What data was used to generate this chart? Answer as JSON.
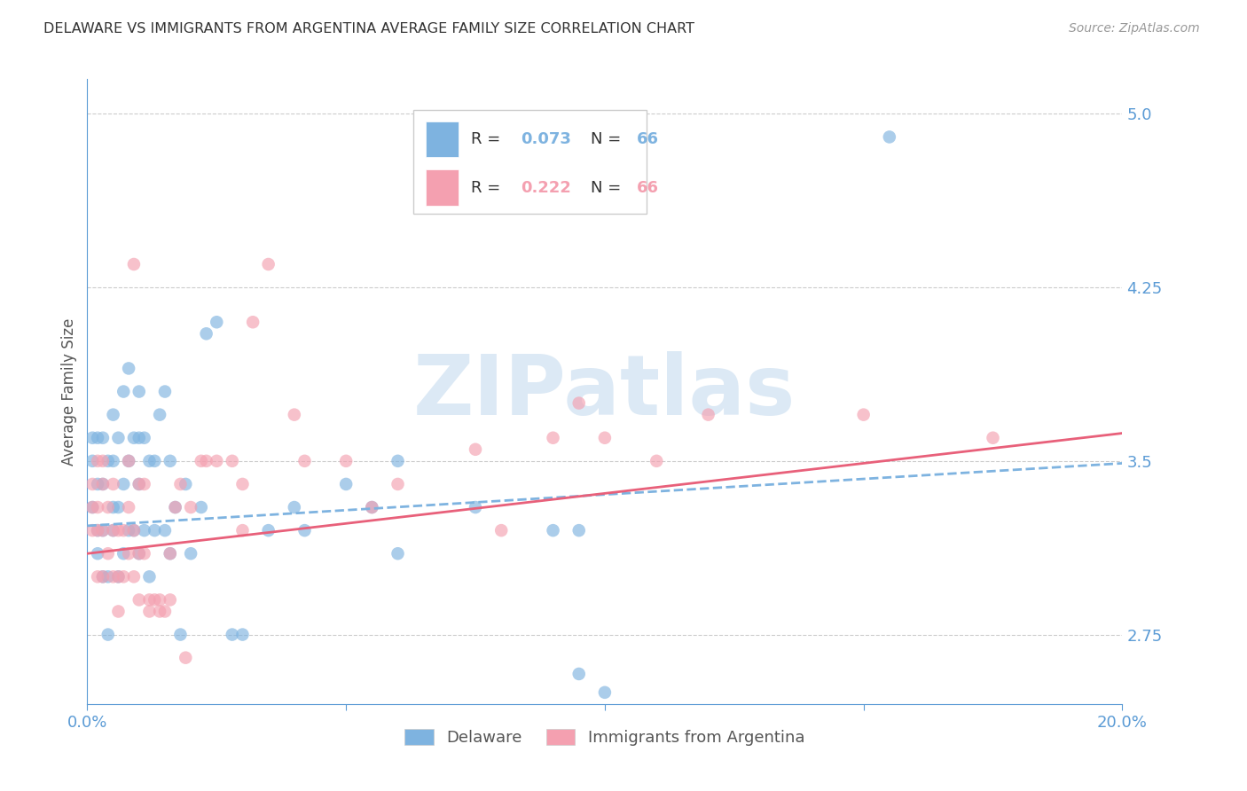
{
  "title": "DELAWARE VS IMMIGRANTS FROM ARGENTINA AVERAGE FAMILY SIZE CORRELATION CHART",
  "source": "Source: ZipAtlas.com",
  "ylabel": "Average Family Size",
  "xlim": [
    0.0,
    0.2
  ],
  "ylim": [
    2.45,
    5.15
  ],
  "yticks": [
    2.75,
    3.5,
    4.25,
    5.0
  ],
  "xtick_vals": [
    0.0,
    0.05,
    0.1,
    0.15,
    0.2
  ],
  "xtick_labels": [
    "0.0%",
    "",
    "",
    "",
    "20.0%"
  ],
  "background_color": "#ffffff",
  "grid_color": "#cccccc",
  "title_color": "#333333",
  "axis_color": "#5b9bd5",
  "watermark_text": "ZIPatlas",
  "watermark_color": "#dce9f5",
  "delaware_color": "#7eb3e0",
  "argentina_color": "#f4a0b0",
  "argentina_trend_color": "#e8607a",
  "delaware_scatter_x": [
    0.001,
    0.001,
    0.001,
    0.002,
    0.002,
    0.002,
    0.002,
    0.003,
    0.003,
    0.003,
    0.003,
    0.004,
    0.004,
    0.004,
    0.005,
    0.005,
    0.005,
    0.005,
    0.006,
    0.006,
    0.006,
    0.007,
    0.007,
    0.007,
    0.008,
    0.008,
    0.008,
    0.009,
    0.009,
    0.01,
    0.01,
    0.01,
    0.01,
    0.011,
    0.011,
    0.012,
    0.012,
    0.013,
    0.013,
    0.014,
    0.015,
    0.015,
    0.016,
    0.016,
    0.017,
    0.018,
    0.019,
    0.02,
    0.022,
    0.023,
    0.025,
    0.028,
    0.03,
    0.035,
    0.04,
    0.055,
    0.06,
    0.095,
    0.095,
    0.1,
    0.06,
    0.042,
    0.05,
    0.075,
    0.09,
    0.155
  ],
  "delaware_scatter_y": [
    3.3,
    3.5,
    3.6,
    3.1,
    3.2,
    3.4,
    3.6,
    3.0,
    3.2,
    3.4,
    3.6,
    2.75,
    3.0,
    3.5,
    3.2,
    3.3,
    3.5,
    3.7,
    3.0,
    3.3,
    3.6,
    3.1,
    3.4,
    3.8,
    3.2,
    3.5,
    3.9,
    3.2,
    3.6,
    3.1,
    3.4,
    3.6,
    3.8,
    3.2,
    3.6,
    3.0,
    3.5,
    3.2,
    3.5,
    3.7,
    3.2,
    3.8,
    3.1,
    3.5,
    3.3,
    2.75,
    3.4,
    3.1,
    3.3,
    4.05,
    4.1,
    2.75,
    2.75,
    3.2,
    3.3,
    3.3,
    3.5,
    3.2,
    2.58,
    2.5,
    3.1,
    3.2,
    3.4,
    3.3,
    3.2,
    4.9
  ],
  "argentina_scatter_x": [
    0.001,
    0.001,
    0.001,
    0.002,
    0.002,
    0.002,
    0.002,
    0.003,
    0.003,
    0.003,
    0.003,
    0.004,
    0.004,
    0.005,
    0.005,
    0.005,
    0.006,
    0.006,
    0.006,
    0.007,
    0.007,
    0.008,
    0.008,
    0.008,
    0.009,
    0.009,
    0.01,
    0.01,
    0.01,
    0.011,
    0.011,
    0.012,
    0.012,
    0.013,
    0.014,
    0.014,
    0.015,
    0.016,
    0.016,
    0.017,
    0.018,
    0.019,
    0.02,
    0.022,
    0.023,
    0.025,
    0.028,
    0.03,
    0.03,
    0.032,
    0.035,
    0.04,
    0.042,
    0.05,
    0.055,
    0.06,
    0.075,
    0.08,
    0.09,
    0.095,
    0.1,
    0.11,
    0.12,
    0.15,
    0.009,
    0.175
  ],
  "argentina_scatter_y": [
    3.2,
    3.3,
    3.4,
    3.0,
    3.2,
    3.3,
    3.5,
    3.0,
    3.2,
    3.4,
    3.5,
    3.1,
    3.3,
    3.0,
    3.2,
    3.4,
    2.85,
    3.0,
    3.2,
    3.0,
    3.2,
    3.1,
    3.3,
    3.5,
    3.0,
    3.2,
    2.9,
    3.1,
    3.4,
    3.1,
    3.4,
    2.85,
    2.9,
    2.9,
    2.85,
    2.9,
    2.85,
    2.9,
    3.1,
    3.3,
    3.4,
    2.65,
    3.3,
    3.5,
    3.5,
    3.5,
    3.5,
    3.2,
    3.4,
    4.1,
    4.35,
    3.7,
    3.5,
    3.5,
    3.3,
    3.4,
    3.55,
    3.2,
    3.6,
    3.75,
    3.6,
    3.5,
    3.7,
    3.7,
    4.35,
    3.6
  ],
  "delaware_trend_x": [
    0.0,
    0.2
  ],
  "delaware_trend_y": [
    3.22,
    3.49
  ],
  "argentina_trend_x": [
    0.0,
    0.2
  ],
  "argentina_trend_y": [
    3.1,
    3.62
  ]
}
